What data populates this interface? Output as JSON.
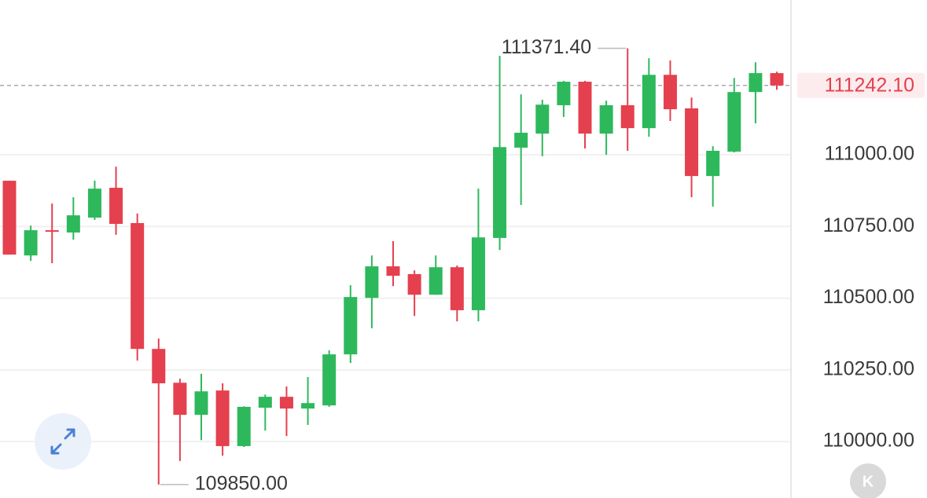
{
  "chart_data": {
    "type": "candlestick",
    "open": [
      110909.6,
      110649,
      110737,
      110729,
      110781,
      110885,
      110762,
      110323,
      110205,
      110093,
      110178,
      109984,
      110118,
      110156,
      110115,
      110126,
      110304,
      110501,
      110611,
      110584,
      110512,
      110608,
      110458,
      110710,
      111025,
      111074,
      111173,
      111255,
      111074,
      111173,
      111093,
      111279,
      111162,
      110926,
      111011,
      111219,
      111285
    ],
    "high": [
      110909.6,
      110753,
      110830,
      110852,
      110910,
      110959,
      110795,
      110359,
      110219,
      110236,
      110203,
      110123,
      110164,
      110192,
      110225,
      110318,
      110545,
      110649,
      110699,
      110597,
      110649,
      110614,
      110882,
      111345,
      111211,
      111192,
      111258,
      111258,
      111189,
      111371.4,
      111337,
      111329,
      111200,
      111030,
      111268,
      111323,
      111290
    ],
    "low": [
      110652,
      110630,
      110622,
      110704,
      110773,
      110721,
      110282,
      109850,
      109932,
      110005,
      109951,
      109981,
      110038,
      110019,
      110058,
      110121,
      110274,
      110395,
      110542,
      110438,
      110512,
      110419,
      110419,
      110668,
      110825,
      110995,
      111132,
      111022,
      111000,
      111014,
      111063,
      111118,
      110852,
      110819,
      111008,
      111110,
      111227
    ],
    "close": [
      110652,
      110737,
      110732,
      110789,
      110882,
      110759,
      110323,
      110203,
      110093,
      110175,
      109984,
      110121,
      110156,
      110115,
      110134,
      110304,
      110504,
      110611,
      110578,
      110512,
      110608,
      110458,
      110712,
      111027,
      111077,
      111175,
      111255,
      111074,
      111173,
      111093,
      111279,
      111159,
      110926,
      111014,
      111219,
      111285,
      111242.1
    ],
    "up_color": "#2eb85c",
    "down_color": "#e5404e",
    "ylim": [
      109803,
      111540
    ],
    "yticks": [
      {
        "value": 110000,
        "label": "110000.00"
      },
      {
        "value": 110250,
        "label": "110250.00"
      },
      {
        "value": 110500,
        "label": "110500.00"
      },
      {
        "value": 110750,
        "label": "110750.00"
      },
      {
        "value": 111000,
        "label": "111000.00"
      }
    ],
    "grid": true,
    "current_price": {
      "value": 111242.1,
      "label": "111242.10"
    },
    "max_marker": {
      "value": 111371.4,
      "label": "111371.40"
    },
    "min_marker": {
      "value": 109850,
      "label": "109850.00"
    }
  },
  "ui": {
    "badge_text": "K"
  }
}
